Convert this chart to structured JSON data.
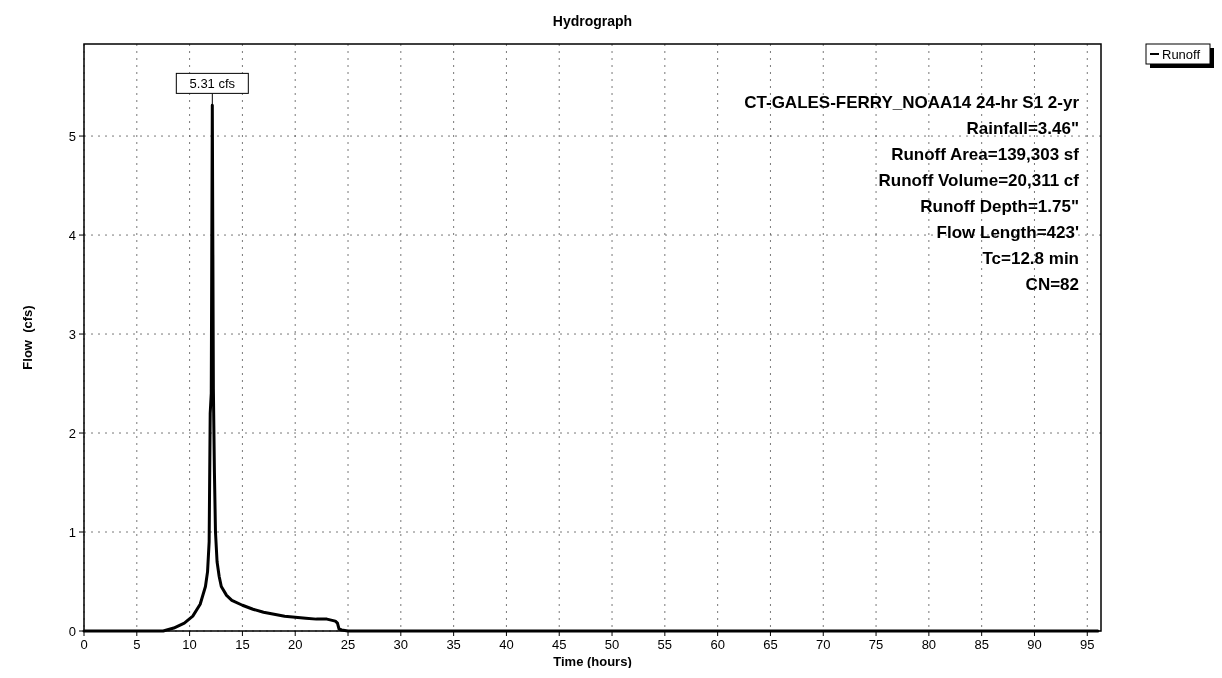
{
  "chart_data": {
    "type": "line",
    "title": "Hydrograph",
    "xlabel": "Time  (hours)",
    "ylabel": "Flow  (cfs)",
    "xlim": [
      0,
      96.3
    ],
    "xticks": [
      0,
      5,
      10,
      15,
      20,
      25,
      30,
      35,
      40,
      45,
      50,
      55,
      60,
      65,
      70,
      75,
      80,
      85,
      90,
      95
    ],
    "ylim": [
      0,
      5.93
    ],
    "yticks": [
      0,
      1,
      2,
      3,
      4,
      5
    ],
    "grid": true,
    "legend": "top right",
    "line_style": "solid",
    "marker": "none",
    "series": [
      {
        "name": "Runoff",
        "color": "#000000",
        "x": [
          0,
          7.5,
          8.5,
          9.5,
          10.3,
          11,
          11.5,
          11.7,
          11.85,
          11.95,
          12.05,
          12.15,
          12.25,
          12.35,
          12.45,
          12.6,
          12.8,
          13,
          13.5,
          14,
          15,
          16,
          17,
          18,
          19,
          20,
          21,
          22,
          23,
          23.8,
          24,
          24.15,
          24.4,
          25,
          30,
          40,
          60,
          96
        ],
        "values": [
          0,
          0,
          0.03,
          0.08,
          0.15,
          0.27,
          0.45,
          0.6,
          0.9,
          2.2,
          2.4,
          5.31,
          2.45,
          1.6,
          1.0,
          0.7,
          0.55,
          0.45,
          0.36,
          0.31,
          0.26,
          0.22,
          0.19,
          0.17,
          0.15,
          0.14,
          0.13,
          0.12,
          0.12,
          0.1,
          0.08,
          0.02,
          0.01,
          0,
          0,
          0,
          0,
          0
        ]
      }
    ],
    "annotations": [
      {
        "text": "5.31 cfs",
        "x": 12.15,
        "y": 5.31
      },
      "CT-GALES-FERRY_NOAA14 24-hr S1 2-yr",
      "Rainfall=3.46\"",
      "Runoff Area=139,303 sf",
      "Runoff Volume=20,311 cf",
      "Runoff Depth=1.75\"",
      "Flow Length=423'",
      "Tc=12.8 min",
      "CN=82"
    ]
  }
}
